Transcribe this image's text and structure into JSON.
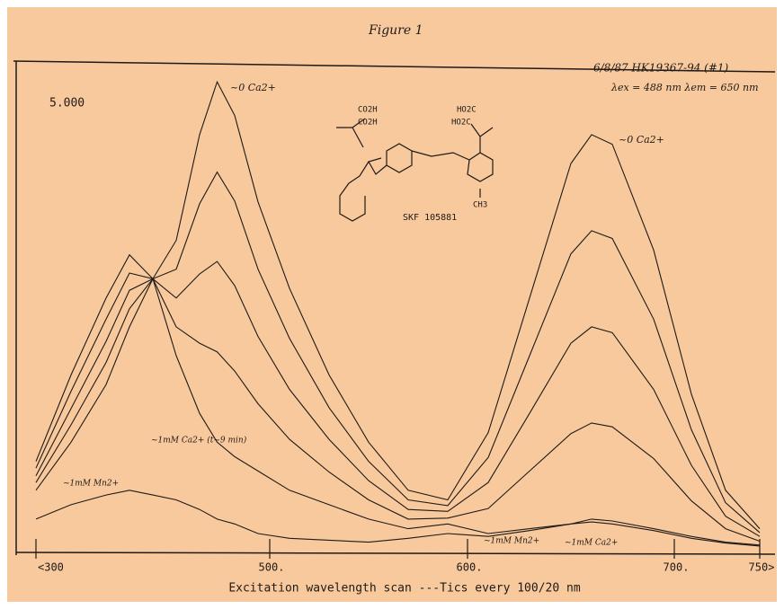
{
  "chart_data": {
    "type": "line",
    "title": "Figure 1",
    "subtitle": "6/8/87 HK19367-94 (#1)",
    "conditions": "λex = 488 nm  λem = 650 nm",
    "x_label": "Excitation wavelength scan ---Tics every 100/20 nm",
    "x": [
      300,
      330,
      360,
      380,
      400,
      420,
      440,
      455,
      470,
      490,
      510,
      530,
      550,
      570,
      590,
      610,
      630,
      650,
      660,
      670,
      690,
      710,
      730,
      750
    ],
    "xlim": [
      300,
      750
    ],
    "xticks": [
      {
        "value": 300,
        "label": "<300"
      },
      {
        "value": 500,
        "label": "500."
      },
      {
        "value": 600,
        "label": "600."
      },
      {
        "value": 700,
        "label": "700."
      },
      {
        "value": 750,
        "label": "750>"
      }
    ],
    "ylim": [
      0,
      5
    ],
    "series": [
      {
        "color": "#1e1a16",
        "values": [
          0.6,
          1.1,
          1.7,
          2.3,
          2.8,
          3.2,
          4.3,
          4.85,
          4.5,
          3.6,
          2.7,
          1.8,
          1.1,
          0.6,
          0.5,
          1.2,
          2.6,
          4.0,
          4.3,
          4.2,
          3.1,
          1.6,
          0.6,
          0.2
        ]
      },
      {
        "color": "#1e1a16",
        "values": [
          0.68,
          1.28,
          1.93,
          2.49,
          2.8,
          2.9,
          3.58,
          3.91,
          3.61,
          2.9,
          2.18,
          1.46,
          0.9,
          0.5,
          0.44,
          0.94,
          2.0,
          3.06,
          3.3,
          3.22,
          2.38,
          1.23,
          0.47,
          0.16
        ]
      },
      {
        "color": "#1e1a16",
        "values": [
          0.75,
          1.45,
          2.15,
          2.68,
          2.8,
          2.6,
          2.85,
          2.98,
          2.73,
          2.2,
          1.65,
          1.13,
          0.7,
          0.4,
          0.38,
          0.68,
          1.4,
          2.13,
          2.3,
          2.24,
          1.65,
          0.86,
          0.33,
          0.12
        ]
      },
      {
        "color": "#1e1a16",
        "values": [
          0.83,
          1.63,
          2.38,
          2.86,
          2.8,
          2.3,
          2.13,
          2.04,
          1.84,
          1.5,
          1.13,
          0.79,
          0.5,
          0.3,
          0.31,
          0.41,
          0.8,
          1.19,
          1.3,
          1.26,
          0.93,
          0.49,
          0.2,
          0.07
        ]
      },
      {
        "color": "#1e1a16",
        "values": [
          0.9,
          1.8,
          2.6,
          3.05,
          2.8,
          2.0,
          1.4,
          1.1,
          0.95,
          0.8,
          0.6,
          0.45,
          0.3,
          0.2,
          0.25,
          0.15,
          0.2,
          0.25,
          0.3,
          0.28,
          0.2,
          0.12,
          0.06,
          0.03
        ]
      },
      {
        "color": "#1e1a16",
        "values": [
          0.3,
          0.45,
          0.55,
          0.6,
          0.55,
          0.5,
          0.4,
          0.3,
          0.25,
          0.15,
          0.1,
          0.08,
          0.06,
          0.1,
          0.15,
          0.12,
          0.18,
          0.25,
          0.27,
          0.25,
          0.18,
          0.1,
          0.05,
          0.02
        ]
      }
    ],
    "annotations": [
      "5.000",
      "~0 Ca2+",
      "~0 Ca2+",
      "~1mM Ca2+ (t~9 min)",
      "~1mM Mn2+",
      "~1mM Mn2+",
      "~1mM Ca2+",
      "SKF 105881",
      "CO2H",
      "CO2H",
      "HO2C",
      "HO2C",
      "CH3"
    ]
  }
}
